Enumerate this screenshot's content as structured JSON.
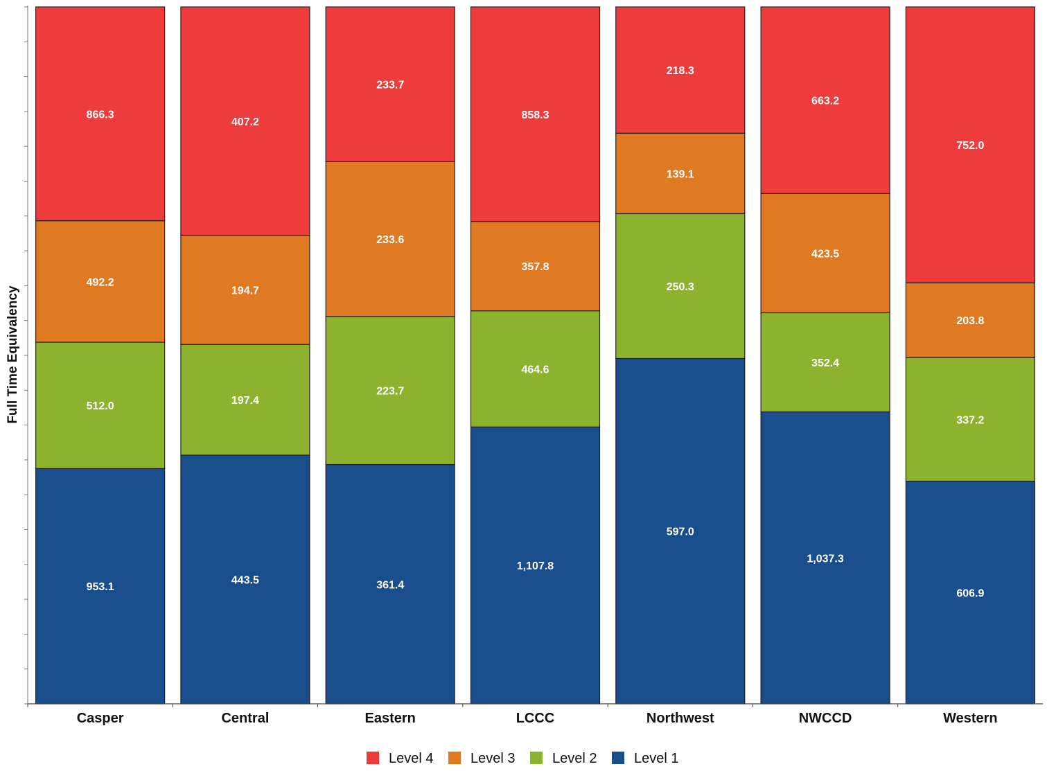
{
  "chart_data": {
    "type": "bar",
    "stacked": "percent",
    "title": "",
    "xlabel": "",
    "ylabel": "Full Time Equivalency",
    "categories": [
      "Casper",
      "Central",
      "Eastern",
      "LCCC",
      "Northwest",
      "NWCCD",
      "Western"
    ],
    "series": [
      {
        "name": "Level 1",
        "color": "#1a4d8c",
        "values": [
          953.1,
          443.5,
          361.4,
          1107.8,
          597.0,
          1037.3,
          606.9
        ],
        "labels": [
          "953.1",
          "443.5",
          "361.4",
          "1,107.8",
          "597.0",
          "1,037.3",
          "606.9"
        ]
      },
      {
        "name": "Level 2",
        "color": "#8db32e",
        "values": [
          512.0,
          197.4,
          223.7,
          464.6,
          250.3,
          352.4,
          337.2
        ],
        "labels": [
          "512.0",
          "197.4",
          "223.7",
          "464.6",
          "250.3",
          "352.4",
          "337.2"
        ]
      },
      {
        "name": "Level 3",
        "color": "#e07a22",
        "values": [
          492.2,
          194.7,
          233.6,
          357.8,
          139.1,
          423.5,
          203.8
        ],
        "labels": [
          "492.2",
          "194.7",
          "233.6",
          "357.8",
          "139.1",
          "423.5",
          "203.8"
        ]
      },
      {
        "name": "Level 4",
        "color": "#ee3b3b",
        "values": [
          866.3,
          407.2,
          233.7,
          858.3,
          218.3,
          663.2,
          752.0
        ],
        "labels": [
          "866.3",
          "407.2",
          "233.7",
          "858.3",
          "218.3",
          "663.2",
          "752.0"
        ]
      }
    ],
    "legend": {
      "position": "bottom",
      "order": [
        "Level 4",
        "Level 3",
        "Level 2",
        "Level 1"
      ]
    },
    "grid": false,
    "y_ticks_labeled": false
  }
}
